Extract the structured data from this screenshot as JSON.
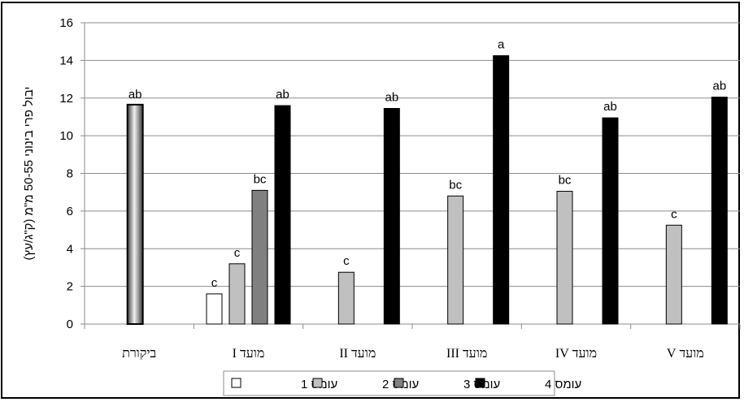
{
  "chart_data": {
    "type": "bar",
    "ylabel": "יבול פרי בינוני 50-55 מ\"מ (ק\"ג/עץ)",
    "ylim": [
      0,
      16
    ],
    "yticks": [
      0,
      2,
      4,
      6,
      8,
      10,
      12,
      14,
      16
    ],
    "grid": true,
    "legend_position": "bottom",
    "categories": [
      "ביקורת",
      "מועד I",
      "מועד II",
      "מועד III",
      "מועד IV",
      "מועד V"
    ],
    "series": [
      {
        "name": "עומס 1",
        "color": "#ffffff",
        "values": [
          null,
          1.6,
          null,
          null,
          null,
          null
        ],
        "labels": [
          null,
          "c",
          null,
          null,
          null,
          null
        ]
      },
      {
        "name": "עומס 2",
        "color": "#c0c0c0",
        "values": [
          null,
          3.2,
          2.75,
          6.8,
          7.05,
          5.25
        ],
        "labels": [
          null,
          "c",
          "c",
          "bc",
          "bc",
          "c"
        ]
      },
      {
        "name": "עומס 3",
        "color": "#808080",
        "values": [
          null,
          7.1,
          null,
          null,
          null,
          null
        ],
        "labels": [
          null,
          "bc",
          null,
          null,
          null,
          null
        ]
      },
      {
        "name": "עומס 4",
        "color": "#000000",
        "values": [
          null,
          11.6,
          11.45,
          14.25,
          10.95,
          12.05
        ],
        "labels": [
          null,
          "ab",
          "ab",
          "a",
          "ab",
          "ab"
        ]
      }
    ],
    "control": {
      "category": "ביקורת",
      "value": 11.65,
      "label": "ab"
    }
  }
}
